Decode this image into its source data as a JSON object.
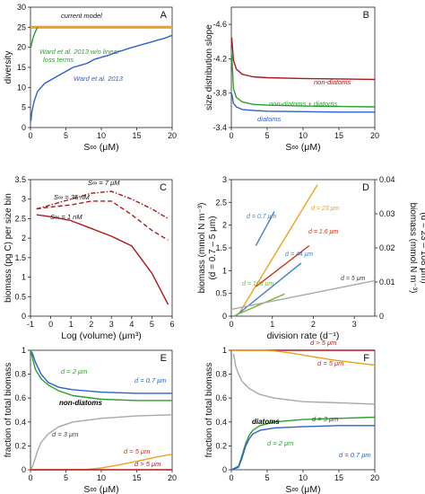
{
  "colors": {
    "orange": "#f0a020",
    "green": "#2e9e2e",
    "blue": "#2f5fd0",
    "darkred": "#b01818",
    "gray": "#a8a8a8",
    "red": "#d83010",
    "steelblue": "#3f7fc8",
    "olive": "#7db33a"
  },
  "chart_data": [
    {
      "panel": "A",
      "type": "line",
      "xlabel": "S∞ (μM)",
      "ylabel": "diversity",
      "xlim": [
        0,
        20
      ],
      "ylim": [
        0,
        30
      ],
      "xticks": [
        0,
        5,
        10,
        15,
        20
      ],
      "yticks": [
        0,
        5,
        10,
        15,
        20,
        25,
        30
      ],
      "annotations": [
        "current model",
        "Ward et al. 2013 w/o linear loss terms",
        "Ward et al. 2013"
      ],
      "series": [
        {
          "name": "current model",
          "color": "orange",
          "x": [
            0,
            20
          ],
          "y": [
            25,
            25
          ]
        },
        {
          "name": "Ward et al. 2013 w/o linear loss terms",
          "color": "green",
          "x": [
            0.05,
            0.3,
            0.6,
            1.0
          ],
          "y": [
            20,
            22,
            23.5,
            25
          ]
        },
        {
          "name": "Ward et al. 2013",
          "color": "blue",
          "x": [
            0.05,
            0.2,
            0.5,
            0.8,
            1,
            2,
            3,
            4,
            5,
            6,
            7,
            8,
            9,
            10,
            11,
            12,
            13,
            14,
            15,
            16,
            17,
            18,
            19,
            20
          ],
          "y": [
            1.5,
            4,
            6.5,
            8,
            9,
            11,
            12,
            13,
            14,
            15,
            15.5,
            16,
            17,
            17.5,
            18,
            18.7,
            19.2,
            19.8,
            20.3,
            20.8,
            21.3,
            21.8,
            22.3,
            23
          ]
        }
      ]
    },
    {
      "panel": "B",
      "type": "line",
      "xlabel": "S∞ (μM)",
      "ylabel": "size distribution slope",
      "xlim": [
        0,
        20
      ],
      "ylim": [
        -3.4,
        -4.8
      ],
      "xticks": [
        0,
        5,
        10,
        15,
        20
      ],
      "yticks": [
        -3.4,
        -3.8,
        -4.2,
        -4.6
      ],
      "series": [
        {
          "name": "non-diatoms",
          "color": "darkred",
          "x": [
            0.05,
            0.3,
            0.7,
            1.5,
            3,
            5,
            10,
            15,
            20
          ],
          "y": [
            -4.45,
            -4.18,
            -4.08,
            -4.02,
            -3.99,
            -3.98,
            -3.97,
            -3.965,
            -3.96
          ]
        },
        {
          "name": "non-diatoms + diatoms",
          "color": "green",
          "x": [
            0.05,
            0.3,
            0.7,
            1.5,
            3,
            5,
            10,
            15,
            20
          ],
          "y": [
            -4.25,
            -3.85,
            -3.75,
            -3.7,
            -3.67,
            -3.66,
            -3.65,
            -3.645,
            -3.64
          ]
        },
        {
          "name": "diatoms",
          "color": "blue",
          "x": [
            0.05,
            0.3,
            0.7,
            1.5,
            3,
            5,
            10,
            15,
            20
          ],
          "y": [
            -3.8,
            -3.68,
            -3.64,
            -3.61,
            -3.6,
            -3.59,
            -3.585,
            -3.58,
            -3.58
          ]
        }
      ]
    },
    {
      "panel": "C",
      "type": "line",
      "xlabel": "Log (volume) (μm³)",
      "ylabel": "biomass (pg C) per size bin",
      "xlim": [
        -1,
        6
      ],
      "ylim": [
        0,
        3.5
      ],
      "xticks": [
        -1,
        0,
        1,
        2,
        3,
        4,
        5,
        6
      ],
      "yticks": [
        0,
        0.5,
        1,
        1.5,
        2,
        2.5,
        3,
        3.5
      ],
      "series": [
        {
          "name": "S∞ = 7 μM",
          "color": "darkred",
          "x": [
            -0.7,
            0,
            1,
            2,
            3,
            4,
            5,
            5.8
          ],
          "y": [
            2.75,
            2.85,
            3.0,
            3.15,
            3.2,
            3.0,
            2.75,
            2.5
          ]
        },
        {
          "name": "S∞ = 35 nM",
          "color": "darkred",
          "x": [
            -0.7,
            0,
            1,
            2,
            3,
            4,
            5,
            5.8
          ],
          "y": [
            2.75,
            2.8,
            2.85,
            2.95,
            2.95,
            2.6,
            2.2,
            1.95
          ]
        },
        {
          "name": "S∞ = 1 nM",
          "color": "darkred",
          "x": [
            -0.7,
            0,
            1,
            2,
            3,
            4,
            5,
            5.8
          ],
          "y": [
            2.6,
            2.55,
            2.45,
            2.25,
            2.05,
            1.8,
            1.1,
            0.3
          ]
        }
      ]
    },
    {
      "panel": "D",
      "type": "line",
      "xlabel": "division rate (d⁻¹)",
      "ylabel": "biomass (mmol N m⁻³)",
      "ylabel2": "(d = 0.7 – 5 μm)",
      "ylabel_right": "biomass (mmol N m⁻³)",
      "ylabel_right2": "(d = 23 – 108 μm)",
      "xlim": [
        0,
        3.5
      ],
      "ylim": [
        0,
        3
      ],
      "ylim_right": [
        0,
        0.04
      ],
      "xticks": [
        0,
        1,
        2,
        3
      ],
      "yticks": [
        0,
        0.5,
        1,
        1.5,
        2,
        2.5,
        3
      ],
      "yticks_right": [
        0,
        0.01,
        0.02,
        0.03,
        0.04
      ],
      "series": [
        {
          "name": "d = 0.7 μm",
          "color": "steelblue",
          "axis": "left",
          "x": [
            0.6,
            1.05
          ],
          "y": [
            1.55,
            2.3
          ]
        },
        {
          "name": "d = 23 μm",
          "color": "orange",
          "axis": "right",
          "x": [
            0.2,
            2.1
          ],
          "y": [
            0.001,
            0.0385
          ]
        },
        {
          "name": "d = 1.6 μm",
          "color": "red",
          "axis": "left",
          "x": [
            0.6,
            1.9
          ],
          "y": [
            0.65,
            1.55
          ]
        },
        {
          "name": "d = 44 μm",
          "color": "steelblue",
          "axis": "right",
          "x": [
            0.1,
            1.7
          ],
          "y": [
            0.0,
            0.0155
          ]
        },
        {
          "name": "d = 108 μm",
          "color": "olive",
          "axis": "right",
          "x": [
            0.05,
            1.3
          ],
          "y": [
            0.0,
            0.0065
          ]
        },
        {
          "name": "d = 5 μm",
          "color": "gray",
          "axis": "left",
          "x": [
            0,
            3.5
          ],
          "y": [
            0.15,
            0.78
          ]
        }
      ]
    },
    {
      "panel": "E",
      "type": "line",
      "xlabel": "S∞ (μM)",
      "ylabel": "fraction of total biomass",
      "label": "non-diatoms",
      "xlim": [
        0,
        20
      ],
      "ylim": [
        0,
        1
      ],
      "xticks": [
        0,
        5,
        10,
        15,
        20
      ],
      "yticks": [
        0,
        0.2,
        0.4,
        0.6,
        0.8,
        1
      ],
      "series": [
        {
          "name": "d = 0.7 μm",
          "color": "blue",
          "x": [
            0,
            0.3,
            0.7,
            1.5,
            2.5,
            4,
            6,
            10,
            15,
            20
          ],
          "y": [
            1.0,
            0.97,
            0.9,
            0.8,
            0.73,
            0.69,
            0.67,
            0.65,
            0.64,
            0.64
          ]
        },
        {
          "name": "d = 2 μm",
          "color": "green",
          "x": [
            0,
            0.3,
            0.7,
            1.5,
            2.5,
            4,
            6,
            10,
            15,
            20
          ],
          "y": [
            1.0,
            0.93,
            0.84,
            0.76,
            0.71,
            0.66,
            0.62,
            0.59,
            0.58,
            0.58
          ]
        },
        {
          "name": "d = 3 μm",
          "color": "gray",
          "x": [
            0,
            0.3,
            0.7,
            1,
            1.5,
            2.5,
            4,
            6,
            10,
            15,
            20
          ],
          "y": [
            0,
            0.03,
            0.1,
            0.16,
            0.23,
            0.3,
            0.36,
            0.4,
            0.43,
            0.45,
            0.46
          ]
        },
        {
          "name": "d = 5 μm",
          "color": "orange",
          "x": [
            0,
            5,
            8,
            10,
            12,
            15,
            18,
            20
          ],
          "y": [
            0,
            0,
            0.003,
            0.015,
            0.035,
            0.07,
            0.11,
            0.13
          ]
        },
        {
          "name": "d > 5 μm",
          "color": "darkred",
          "x": [
            0,
            20
          ],
          "y": [
            0,
            0
          ]
        }
      ]
    },
    {
      "panel": "F",
      "type": "line",
      "xlabel": "S∞ (μM)",
      "ylabel": "fraction of total biomass",
      "label": "diatoms",
      "xlim": [
        0,
        20
      ],
      "ylim": [
        0,
        1
      ],
      "xticks": [
        0,
        5,
        10,
        15,
        20
      ],
      "yticks": [
        0,
        0.2,
        0.4,
        0.6,
        0.8,
        1
      ],
      "series": [
        {
          "name": "d > 5 μm",
          "color": "darkred",
          "x": [
            0,
            20
          ],
          "y": [
            1,
            1
          ]
        },
        {
          "name": "d = 5 μm",
          "color": "orange",
          "x": [
            0,
            4,
            6,
            8,
            10,
            12,
            14,
            16,
            18,
            20
          ],
          "y": [
            1,
            1,
            0.995,
            0.98,
            0.96,
            0.94,
            0.92,
            0.905,
            0.89,
            0.875
          ]
        },
        {
          "name": "d = 3 μm",
          "color": "gray",
          "x": [
            0.3,
            0.6,
            1,
            1.5,
            2.5,
            4,
            6,
            10,
            15,
            20
          ],
          "y": [
            0.97,
            0.87,
            0.8,
            0.74,
            0.68,
            0.63,
            0.6,
            0.57,
            0.56,
            0.55
          ]
        },
        {
          "name": "d = 2 μm",
          "color": "green",
          "x": [
            0,
            1,
            1.5,
            2,
            2.5,
            3,
            4,
            6,
            10,
            15,
            20
          ],
          "y": [
            0,
            0.03,
            0.12,
            0.22,
            0.29,
            0.33,
            0.37,
            0.4,
            0.42,
            0.43,
            0.44
          ]
        },
        {
          "name": "d = 0.7 μm",
          "color": "blue",
          "x": [
            0,
            1,
            1.5,
            2,
            2.5,
            3,
            4,
            6,
            10,
            15,
            20
          ],
          "y": [
            0,
            0.02,
            0.1,
            0.2,
            0.26,
            0.3,
            0.33,
            0.35,
            0.36,
            0.37,
            0.37
          ]
        }
      ]
    }
  ],
  "panels": [
    {
      "letter": "A",
      "labels": [
        {
          "text": "current model",
          "color": "#111111"
        },
        {
          "text": "Ward et al. 2013 w/o linear",
          "color": "green"
        },
        {
          "text": "loss terms",
          "color": "green"
        },
        {
          "text": "Ward et al. 2013",
          "color": "blue"
        }
      ]
    },
    {
      "letter": "B",
      "labels": [
        {
          "text": "non-diatoms",
          "color": "darkred"
        },
        {
          "text": "non-diatoms + diatoms",
          "color": "green"
        },
        {
          "text": "diatoms",
          "color": "blue"
        }
      ]
    },
    {
      "letter": "C",
      "labels": [
        {
          "text": "S∞ = 7 μM",
          "color": "#111111"
        },
        {
          "text": "S∞ = 35 nM",
          "color": "#111111"
        },
        {
          "text": "S∞ = 1 nM",
          "color": "#111111"
        }
      ]
    },
    {
      "letter": "D",
      "labels": [
        {
          "text": "d = 0.7 μm",
          "color": "steelblue"
        },
        {
          "text": "d = 23 μm",
          "color": "orange"
        },
        {
          "text": "d = 1.6 μm",
          "color": "red"
        },
        {
          "text": "d = 44 μm",
          "color": "steelblue"
        },
        {
          "text": "d = 108 μm",
          "color": "olive"
        },
        {
          "text": "d = 5 μm",
          "color": "#444444"
        }
      ]
    },
    {
      "letter": "E",
      "labels": [
        {
          "text": "d = 2 μm",
          "color": "green"
        },
        {
          "text": "d = 0.7 μm",
          "color": "blue"
        },
        {
          "text": "non-diatoms",
          "color": "#000000"
        },
        {
          "text": "d = 3 μm",
          "color": "#444444"
        },
        {
          "text": "d = 5 μm",
          "color": "red"
        },
        {
          "text": "d > 5 μm",
          "color": "darkred"
        }
      ]
    },
    {
      "letter": "F",
      "labels": [
        {
          "text": "d > 5 μm",
          "color": "darkred"
        },
        {
          "text": "d = 5 μm",
          "color": "red"
        },
        {
          "text": "d = 3 μm",
          "color": "#444444"
        },
        {
          "text": "diatoms",
          "color": "#000000"
        },
        {
          "text": "d = 2 μm",
          "color": "green"
        },
        {
          "text": "d = 0.7 μm",
          "color": "blue"
        }
      ]
    }
  ]
}
